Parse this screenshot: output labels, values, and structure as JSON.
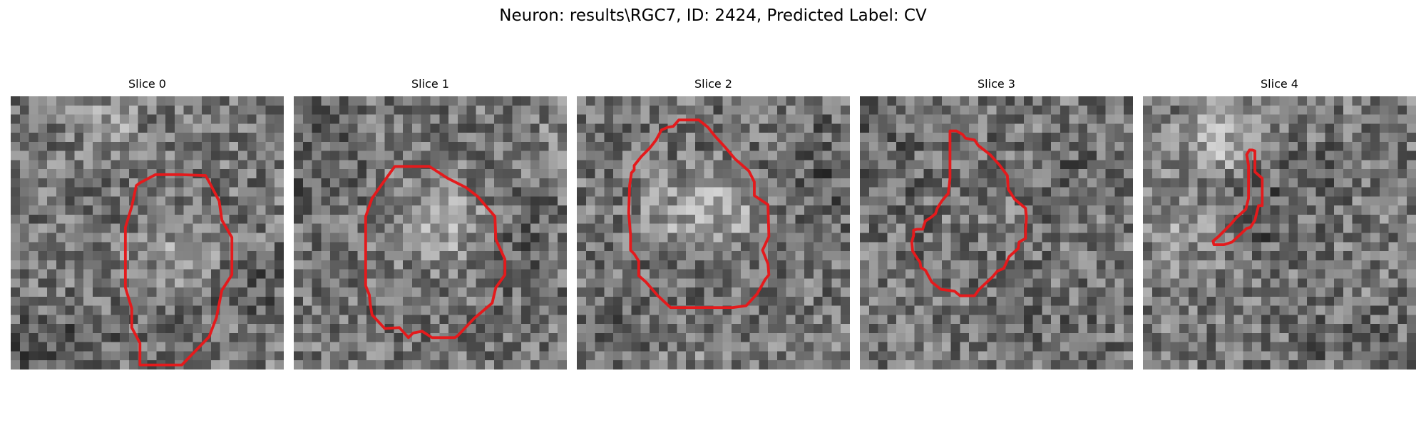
{
  "figure": {
    "title": "Neuron: results\\RGC7, ID: 2424, Predicted Label: CV"
  },
  "colors": {
    "contour": "#e41a1c",
    "background": "#ffffff"
  },
  "slices": [
    {
      "label": "Slice 0"
    },
    {
      "label": "Slice 1"
    },
    {
      "label": "Slice 2"
    },
    {
      "label": "Slice 3"
    },
    {
      "label": "Slice 4"
    }
  ]
}
